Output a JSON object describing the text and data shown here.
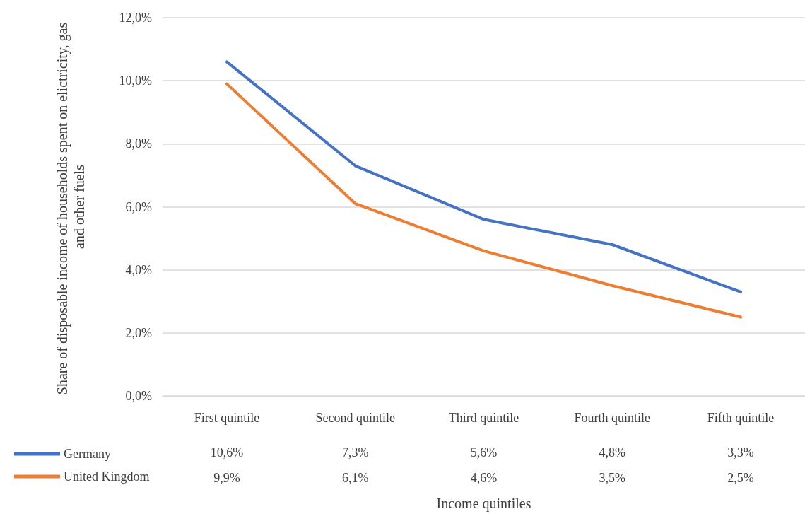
{
  "chart_data": {
    "type": "line",
    "xlabel": "Income quintiles",
    "ylabel": "Share of disposable income of households spent on elictricity, gas and other fuels",
    "categories": [
      "First quintile",
      "Second quintile",
      "Third quintile",
      "Fourth quintile",
      "Fifth quintile"
    ],
    "series": [
      {
        "name": "Germany",
        "color": "#4472c4",
        "values": [
          10.6,
          7.3,
          5.6,
          4.8,
          3.3
        ],
        "value_labels": [
          "10,6%",
          "7,3%",
          "5,6%",
          "4,8%",
          "3,3%"
        ]
      },
      {
        "name": "United Kingdom",
        "color": "#ed7d31",
        "values": [
          9.9,
          6.1,
          4.6,
          3.5,
          2.5
        ],
        "value_labels": [
          "9,9%",
          "6,1%",
          "4,6%",
          "3,5%",
          "2,5%"
        ]
      }
    ],
    "ylim": [
      0,
      12
    ],
    "yticks": [
      {
        "value": 0,
        "label": "0,0%"
      },
      {
        "value": 2,
        "label": "2,0%"
      },
      {
        "value": 4,
        "label": "4,0%"
      },
      {
        "value": 6,
        "label": "6,0%"
      },
      {
        "value": 8,
        "label": "8,0%"
      },
      {
        "value": 10,
        "label": "10,0%"
      },
      {
        "value": 12,
        "label": "12,0%"
      }
    ],
    "grid": "y",
    "legend": "bottom left",
    "marker": "none",
    "line_style": "solid"
  }
}
